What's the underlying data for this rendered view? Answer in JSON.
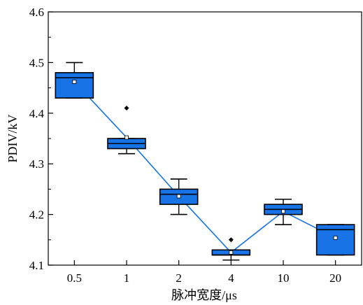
{
  "chart_data": {
    "type": "box",
    "xlabel": "脉冲宽度/μs",
    "ylabel": "PDIV/kV",
    "ylim": [
      4.1,
      4.6
    ],
    "yticks": [
      "4.1",
      "4.2",
      "4.3",
      "4.4",
      "4.5",
      "4.6"
    ],
    "categories": [
      "0.5",
      "1",
      "2",
      "4",
      "10",
      "20"
    ],
    "box_color": "#1874e6",
    "line_color": "#1874e6",
    "grid": false,
    "boxes": [
      {
        "category": "0.5",
        "whisker_low": 4.43,
        "q1": 4.43,
        "median": 4.47,
        "q3": 4.48,
        "whisker_high": 4.5,
        "mean": 4.462,
        "outliers": []
      },
      {
        "category": "1",
        "whisker_low": 4.32,
        "q1": 4.33,
        "median": 4.34,
        "q3": 4.35,
        "whisker_high": 4.35,
        "mean": 4.352,
        "outliers": [
          4.41
        ]
      },
      {
        "category": "2",
        "whisker_low": 4.2,
        "q1": 4.22,
        "median": 4.24,
        "q3": 4.25,
        "whisker_high": 4.27,
        "mean": 4.236,
        "outliers": []
      },
      {
        "category": "4",
        "whisker_low": 4.11,
        "q1": 4.12,
        "median": 4.12,
        "q3": 4.13,
        "whisker_high": 4.13,
        "mean": 4.125,
        "outliers": [
          4.15
        ]
      },
      {
        "category": "10",
        "whisker_low": 4.18,
        "q1": 4.2,
        "median": 4.21,
        "q3": 4.22,
        "whisker_high": 4.23,
        "mean": 4.206,
        "outliers": []
      },
      {
        "category": "20",
        "whisker_low": 4.12,
        "q1": 4.12,
        "median": 4.17,
        "q3": 4.18,
        "whisker_high": 4.18,
        "mean": 4.154,
        "outliers": []
      }
    ]
  }
}
